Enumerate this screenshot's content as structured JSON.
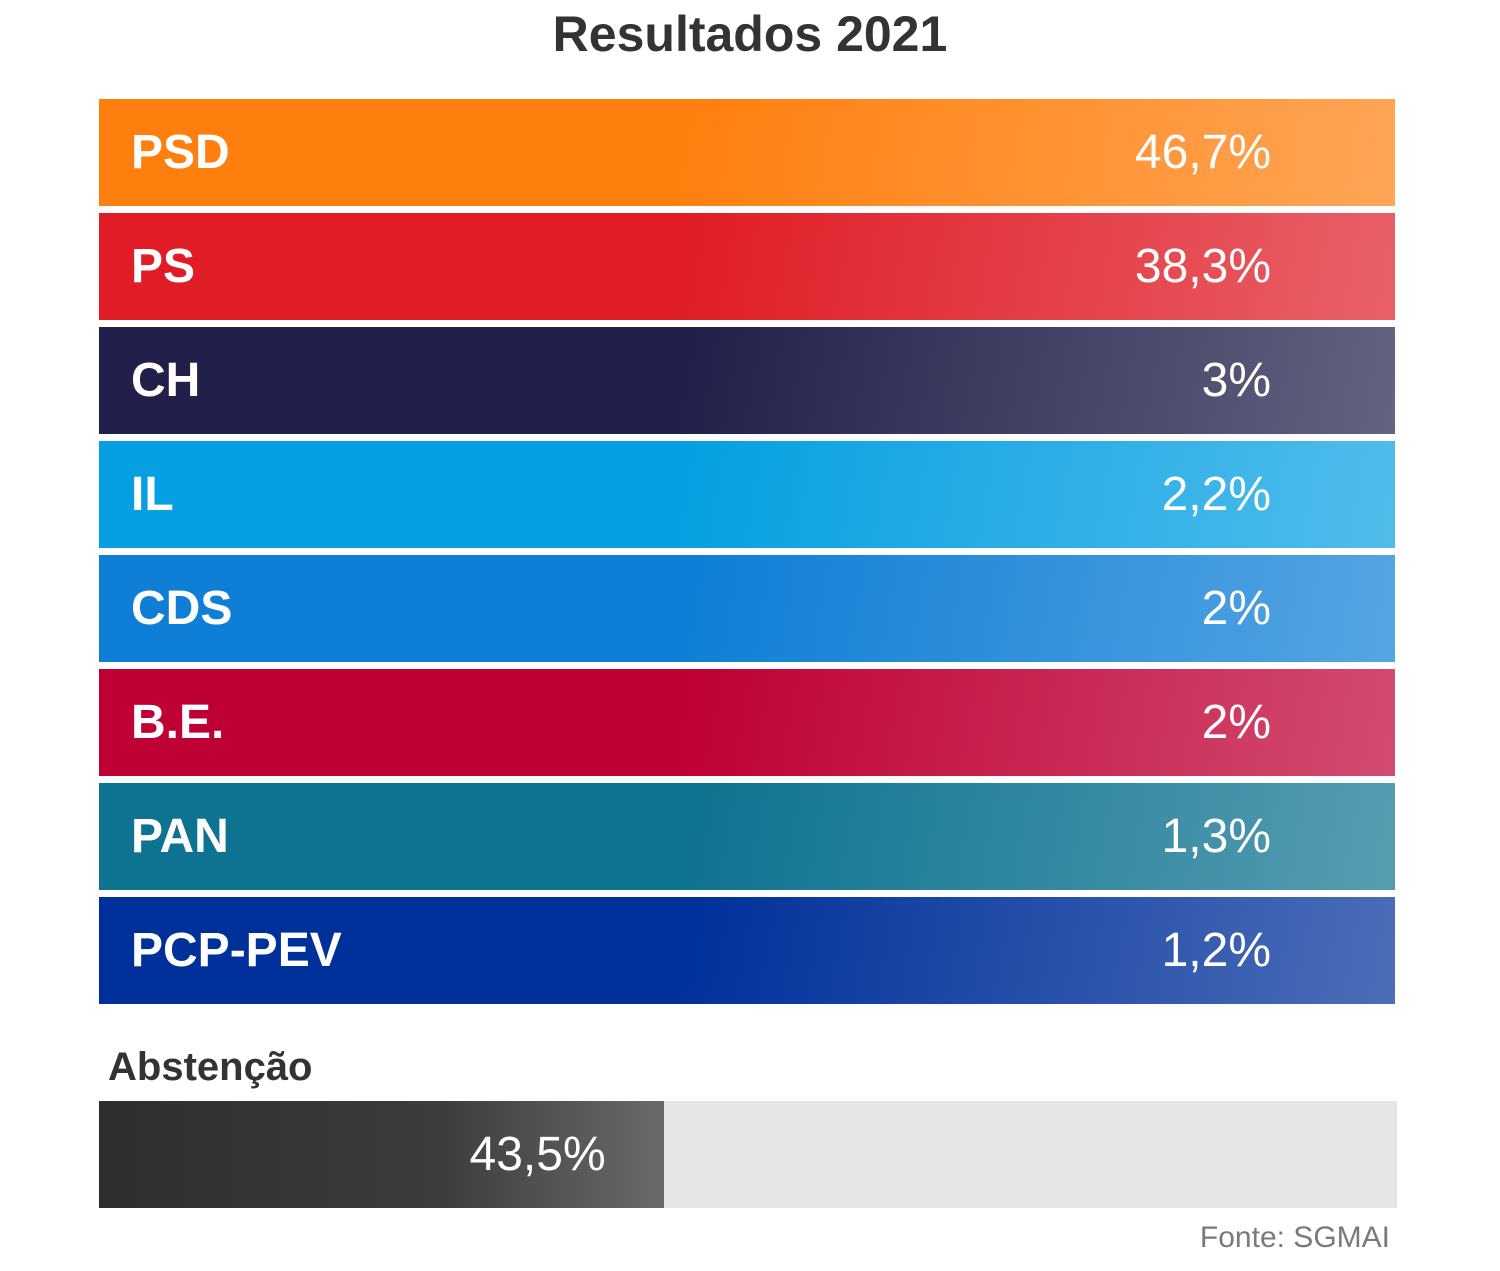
{
  "chart_data": {
    "type": "table",
    "title": "Resultados 2021",
    "rows": [
      {
        "party": "PSD",
        "value": 46.7,
        "label": "46,7%",
        "color": "#ff7f0e"
      },
      {
        "party": "PS",
        "value": 38.3,
        "label": "38,3%",
        "color": "#e01d27"
      },
      {
        "party": "CH",
        "value": 3,
        "label": "3%",
        "color": "#22204a"
      },
      {
        "party": "IL",
        "value": 2.2,
        "label": "2,2%",
        "color": "#06a0e2"
      },
      {
        "party": "CDS",
        "value": 2,
        "label": "2%",
        "color": "#0e7ed6"
      },
      {
        "party": "B.E.",
        "value": 2,
        "label": "2%",
        "color": "#bf0034"
      },
      {
        "party": "PAN",
        "value": 1.3,
        "label": "1,3%",
        "color": "#0e7390"
      },
      {
        "party": "PCP-PEV",
        "value": 1.2,
        "label": "1,2%",
        "color": "#00309a"
      }
    ],
    "abstention": {
      "label": "Abstenção",
      "value": 43.5,
      "value_label": "43,5%"
    },
    "source": "Fonte: SGMAI"
  }
}
